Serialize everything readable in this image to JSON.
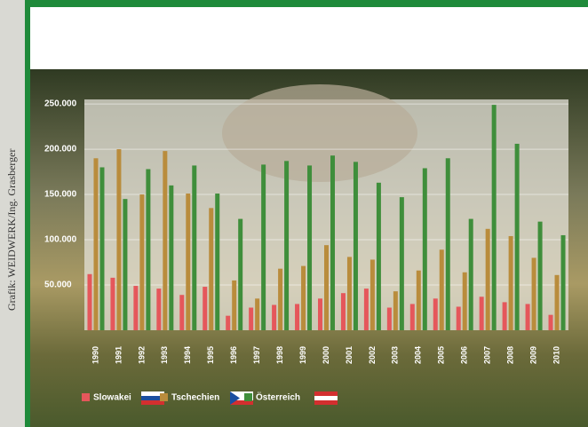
{
  "chart_data": {
    "type": "bar",
    "source": "Grafik: WEIDWERK/Ing. Grasberger",
    "categories": [
      "1990",
      "1991",
      "1992",
      "1993",
      "1994",
      "1995",
      "1996",
      "1997",
      "1998",
      "1999",
      "2000",
      "2001",
      "2002",
      "2003",
      "2004",
      "2005",
      "2006",
      "2007",
      "2008",
      "2009",
      "2010"
    ],
    "series": [
      {
        "name": "Slowakei",
        "color": "#e5575b",
        "values": [
          62000,
          58000,
          49000,
          46000,
          39000,
          48000,
          16000,
          25000,
          28000,
          29000,
          35000,
          41000,
          46000,
          25000,
          29000,
          35000,
          26000,
          37000,
          31000,
          29000,
          17000
        ]
      },
      {
        "name": "Tschechien",
        "color": "#b98c3c",
        "values": [
          190000,
          200000,
          150000,
          198000,
          151000,
          135000,
          55000,
          35000,
          68000,
          71000,
          94000,
          81000,
          78000,
          43000,
          66000,
          89000,
          64000,
          112000,
          104000,
          80000,
          61000
        ]
      },
      {
        "name": "Österreich",
        "color": "#3f8e3b",
        "values": [
          180000,
          145000,
          178000,
          160000,
          182000,
          151000,
          123000,
          183000,
          187000,
          182000,
          193000,
          186000,
          163000,
          147000,
          179000,
          190000,
          123000,
          249000,
          206000,
          120000,
          105000
        ]
      }
    ],
    "ylim": [
      0,
      255000
    ],
    "yticks": [
      {
        "value": 50000,
        "label": "50.000"
      },
      {
        "value": 100000,
        "label": "100.000"
      },
      {
        "value": 150000,
        "label": "150.000"
      },
      {
        "value": 200000,
        "label": "200.000"
      },
      {
        "value": 250000,
        "label": "250.000"
      }
    ],
    "grid": true
  }
}
